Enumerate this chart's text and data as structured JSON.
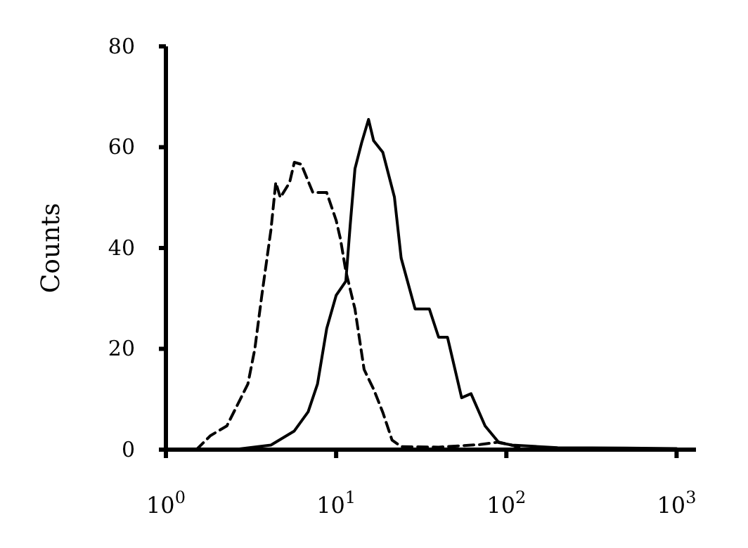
{
  "chart_data": {
    "type": "line",
    "ylabel": "Counts",
    "log": "x",
    "xlim": [
      1,
      1300
    ],
    "ylim": [
      0,
      80
    ],
    "xticks": [
      {
        "value": 1,
        "label": "10$^{0}$"
      },
      {
        "value": 10,
        "label": "10$^{1}$"
      },
      {
        "value": 100,
        "label": "10$^{2}$"
      },
      {
        "value": 1000,
        "label": "10$^{3}$"
      }
    ],
    "yticks": [
      0,
      20,
      40,
      60,
      80
    ],
    "grid": false,
    "marker": "none",
    "series": [
      {
        "color": "#000000",
        "line_style": "dashed",
        "x": [
          1.51,
          1.83,
          2.28,
          3.03,
          3.33,
          3.66,
          4.14,
          4.42,
          4.7,
          5.33,
          5.68,
          6.24,
          7.3,
          8.8,
          10,
          10.6,
          11.4,
          12.9,
          14.6,
          16.6,
          18.8,
          21.3,
          24.1,
          40,
          70,
          90,
          110,
          120
        ],
        "values": [
          0,
          2.8,
          4.7,
          13,
          20,
          30.6,
          43.6,
          53,
          50,
          53,
          57,
          56.6,
          51,
          51,
          45.5,
          41.8,
          35.4,
          27.9,
          15.9,
          12,
          7.4,
          1.9,
          0.6,
          0.5,
          1,
          1.5,
          0.8,
          0.3
        ]
      },
      {
        "color": "#000000",
        "line_style": "solid",
        "x": [
          2.5,
          4.14,
          5.68,
          6.85,
          7.77,
          8.8,
          10,
          11.4,
          12.1,
          12.9,
          14.1,
          15.5,
          16.6,
          18.8,
          22,
          24.1,
          29.1,
          35.3,
          40,
          45.1,
          54.6,
          62,
          75,
          90.4,
          108,
          200,
          500,
          1000
        ],
        "values": [
          0,
          0.9,
          3.7,
          7.5,
          13,
          24,
          30.6,
          33.4,
          44.6,
          55.7,
          60.8,
          65.5,
          61.3,
          59,
          50.1,
          38,
          27.9,
          27.9,
          22.3,
          22.3,
          10.3,
          11.1,
          4.7,
          1.4,
          0.9,
          0.4,
          0.3,
          0.2
        ]
      }
    ]
  }
}
